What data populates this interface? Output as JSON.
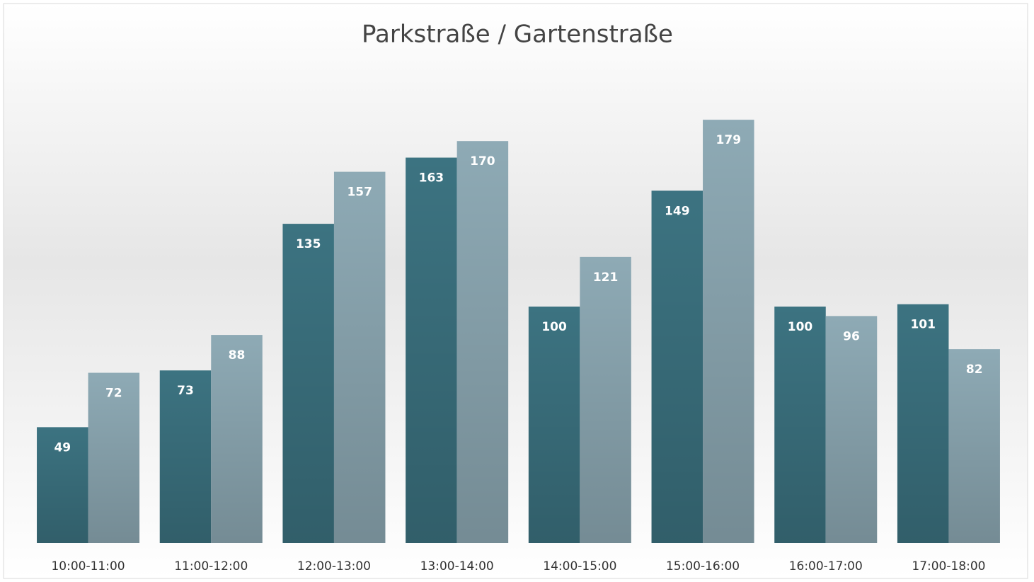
{
  "chart_data": {
    "type": "bar",
    "title": "Parkstraße / Gartenstraße",
    "categories": [
      "10:00-11:00",
      "11:00-12:00",
      "12:00-13:00",
      "13:00-14:00",
      "14:00-15:00",
      "15:00-16:00",
      "16:00-17:00",
      "17:00-18:00"
    ],
    "series": [
      {
        "color": "#3c7381",
        "values": [
          49,
          73,
          135,
          163,
          100,
          149,
          100,
          101
        ]
      },
      {
        "color": "#8eaab5",
        "values": [
          72,
          88,
          157,
          170,
          121,
          179,
          96,
          82
        ]
      }
    ],
    "ylim": [
      0,
      200
    ]
  }
}
